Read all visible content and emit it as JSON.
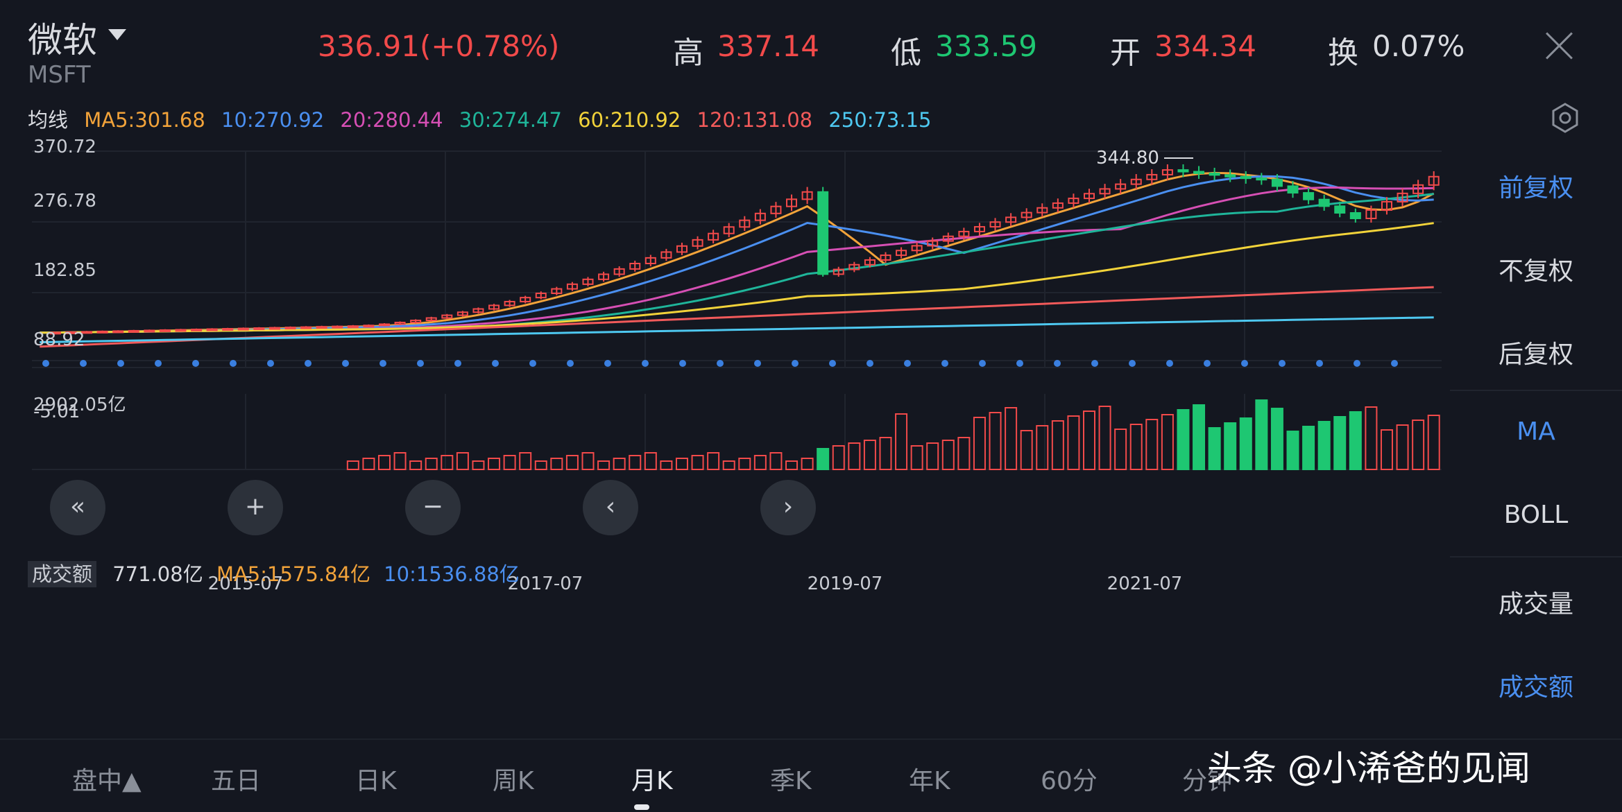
{
  "header": {
    "stock_name": "微软",
    "stock_code": "MSFT",
    "price_change": "336.91(+0.78%)",
    "high_label": "高",
    "high": "337.14",
    "low_label": "低",
    "low": "333.59",
    "open_label": "开",
    "open": "334.34",
    "turnover_label": "换",
    "turnover": "0.07%"
  },
  "ma_row": {
    "label": "均线",
    "items": [
      {
        "text": "MA5:301.68",
        "color": "#f2a33a"
      },
      {
        "text": "10:270.92",
        "color": "#4a8ff0"
      },
      {
        "text": "20:280.44",
        "color": "#d64fb4"
      },
      {
        "text": "30:274.47",
        "color": "#1fb59a"
      },
      {
        "text": "60:210.92",
        "color": "#f2d33a"
      },
      {
        "text": "120:131.08",
        "color": "#f25a5a"
      },
      {
        "text": "250:73.15",
        "color": "#4ec8f0"
      }
    ]
  },
  "right_panel": {
    "items": [
      "前复权",
      "不复权",
      "后复权",
      "MA",
      "BOLL",
      "成交量",
      "成交额"
    ]
  },
  "volume_row": {
    "label": "成交额",
    "value": "771.08亿",
    "ma5": "MA5:1575.84亿",
    "ma10": "10:1536.88亿"
  },
  "tabs": [
    "盘中▲",
    "五日",
    "日K",
    "周K",
    "月K",
    "季K",
    "年K",
    "60分",
    "分钟"
  ],
  "active_tab": "月K",
  "watermark": "头条 @小浠爸的见闻",
  "colors": {
    "up": "#f24a4a",
    "down": "#1ec772",
    "accent": "#4a8ff0"
  },
  "chart_data": {
    "type": "candlestick",
    "price_axis_ticks": [
      "370.72",
      "276.78",
      "182.85",
      "88.92",
      "-5.01"
    ],
    "volume_axis_ticks": [
      "2902.05亿"
    ],
    "x_tick_labels": [
      "2015-07",
      "2017-07",
      "2019-07",
      "2021-07"
    ],
    "annotation": "344.80",
    "ylim": [
      -5.01,
      370.72
    ],
    "volume_ylim": [
      0,
      2902.05
    ],
    "series": [
      {
        "name": "MA250",
        "values": [
          30,
          30,
          31,
          31,
          32,
          33,
          34,
          35,
          36,
          38,
          40,
          42,
          44,
          46,
          49,
          52,
          55,
          58,
          61,
          64,
          67,
          70,
          73
        ]
      }
    ]
  }
}
